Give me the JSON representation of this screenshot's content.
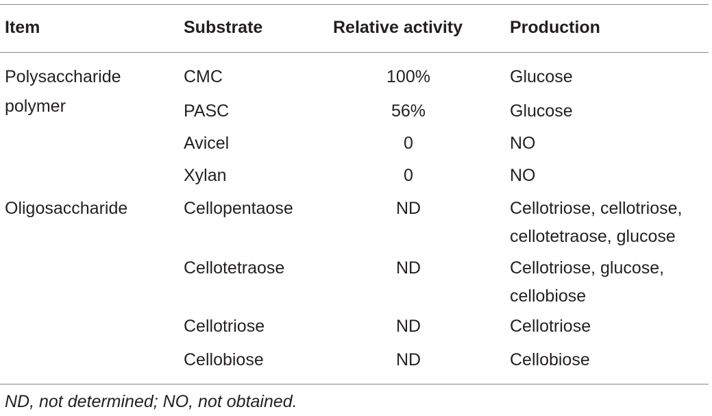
{
  "header": {
    "item": "Item",
    "substrate": "Substrate",
    "activity": "Relative activity",
    "production": "Production"
  },
  "groups": [
    {
      "label_lines": [
        "Polysaccharide",
        "polymer"
      ],
      "rows": [
        {
          "substrate": "CMC",
          "activity": "100%",
          "production": [
            "Glucose"
          ]
        },
        {
          "substrate": "PASC",
          "activity": "56%",
          "production": [
            "Glucose"
          ]
        },
        {
          "substrate": "Avicel",
          "activity": "0",
          "production": [
            "NO"
          ]
        },
        {
          "substrate": "Xylan",
          "activity": "0",
          "production": [
            "NO"
          ]
        }
      ]
    },
    {
      "label_lines": [
        "Oligosaccharide"
      ],
      "rows": [
        {
          "substrate": "Cellopentaose",
          "activity": "ND",
          "production": [
            "Cellotriose, cellotriose,",
            "cellotetraose, glucose"
          ]
        },
        {
          "substrate": "Cellotetraose",
          "activity": "ND",
          "production": [
            "Cellotriose, glucose,",
            "cellobiose"
          ]
        },
        {
          "substrate": "Cellotriose",
          "activity": "ND",
          "production": [
            "Cellotriose"
          ]
        },
        {
          "substrate": "Cellobiose",
          "activity": "ND",
          "production": [
            "Cellobiose"
          ]
        }
      ]
    }
  ],
  "footnote": "ND, not determined; NO, not obtained."
}
